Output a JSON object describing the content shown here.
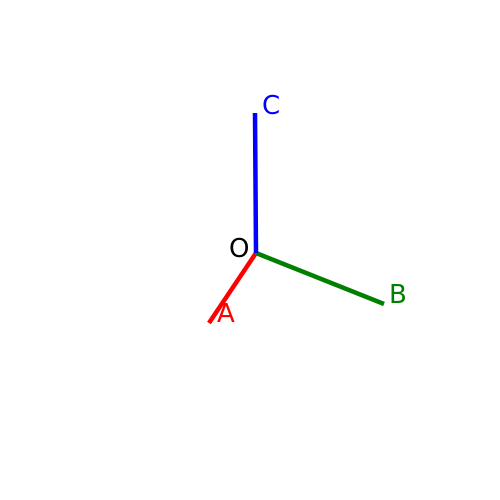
{
  "diagram": {
    "origin_label": "O",
    "rays": [
      {
        "id": "a",
        "label": "A",
        "color": "#ff0000"
      },
      {
        "id": "b",
        "label": "B",
        "color": "#008000"
      },
      {
        "id": "c",
        "label": "C",
        "color": "#0000ff"
      }
    ],
    "label_color": "#000000"
  }
}
